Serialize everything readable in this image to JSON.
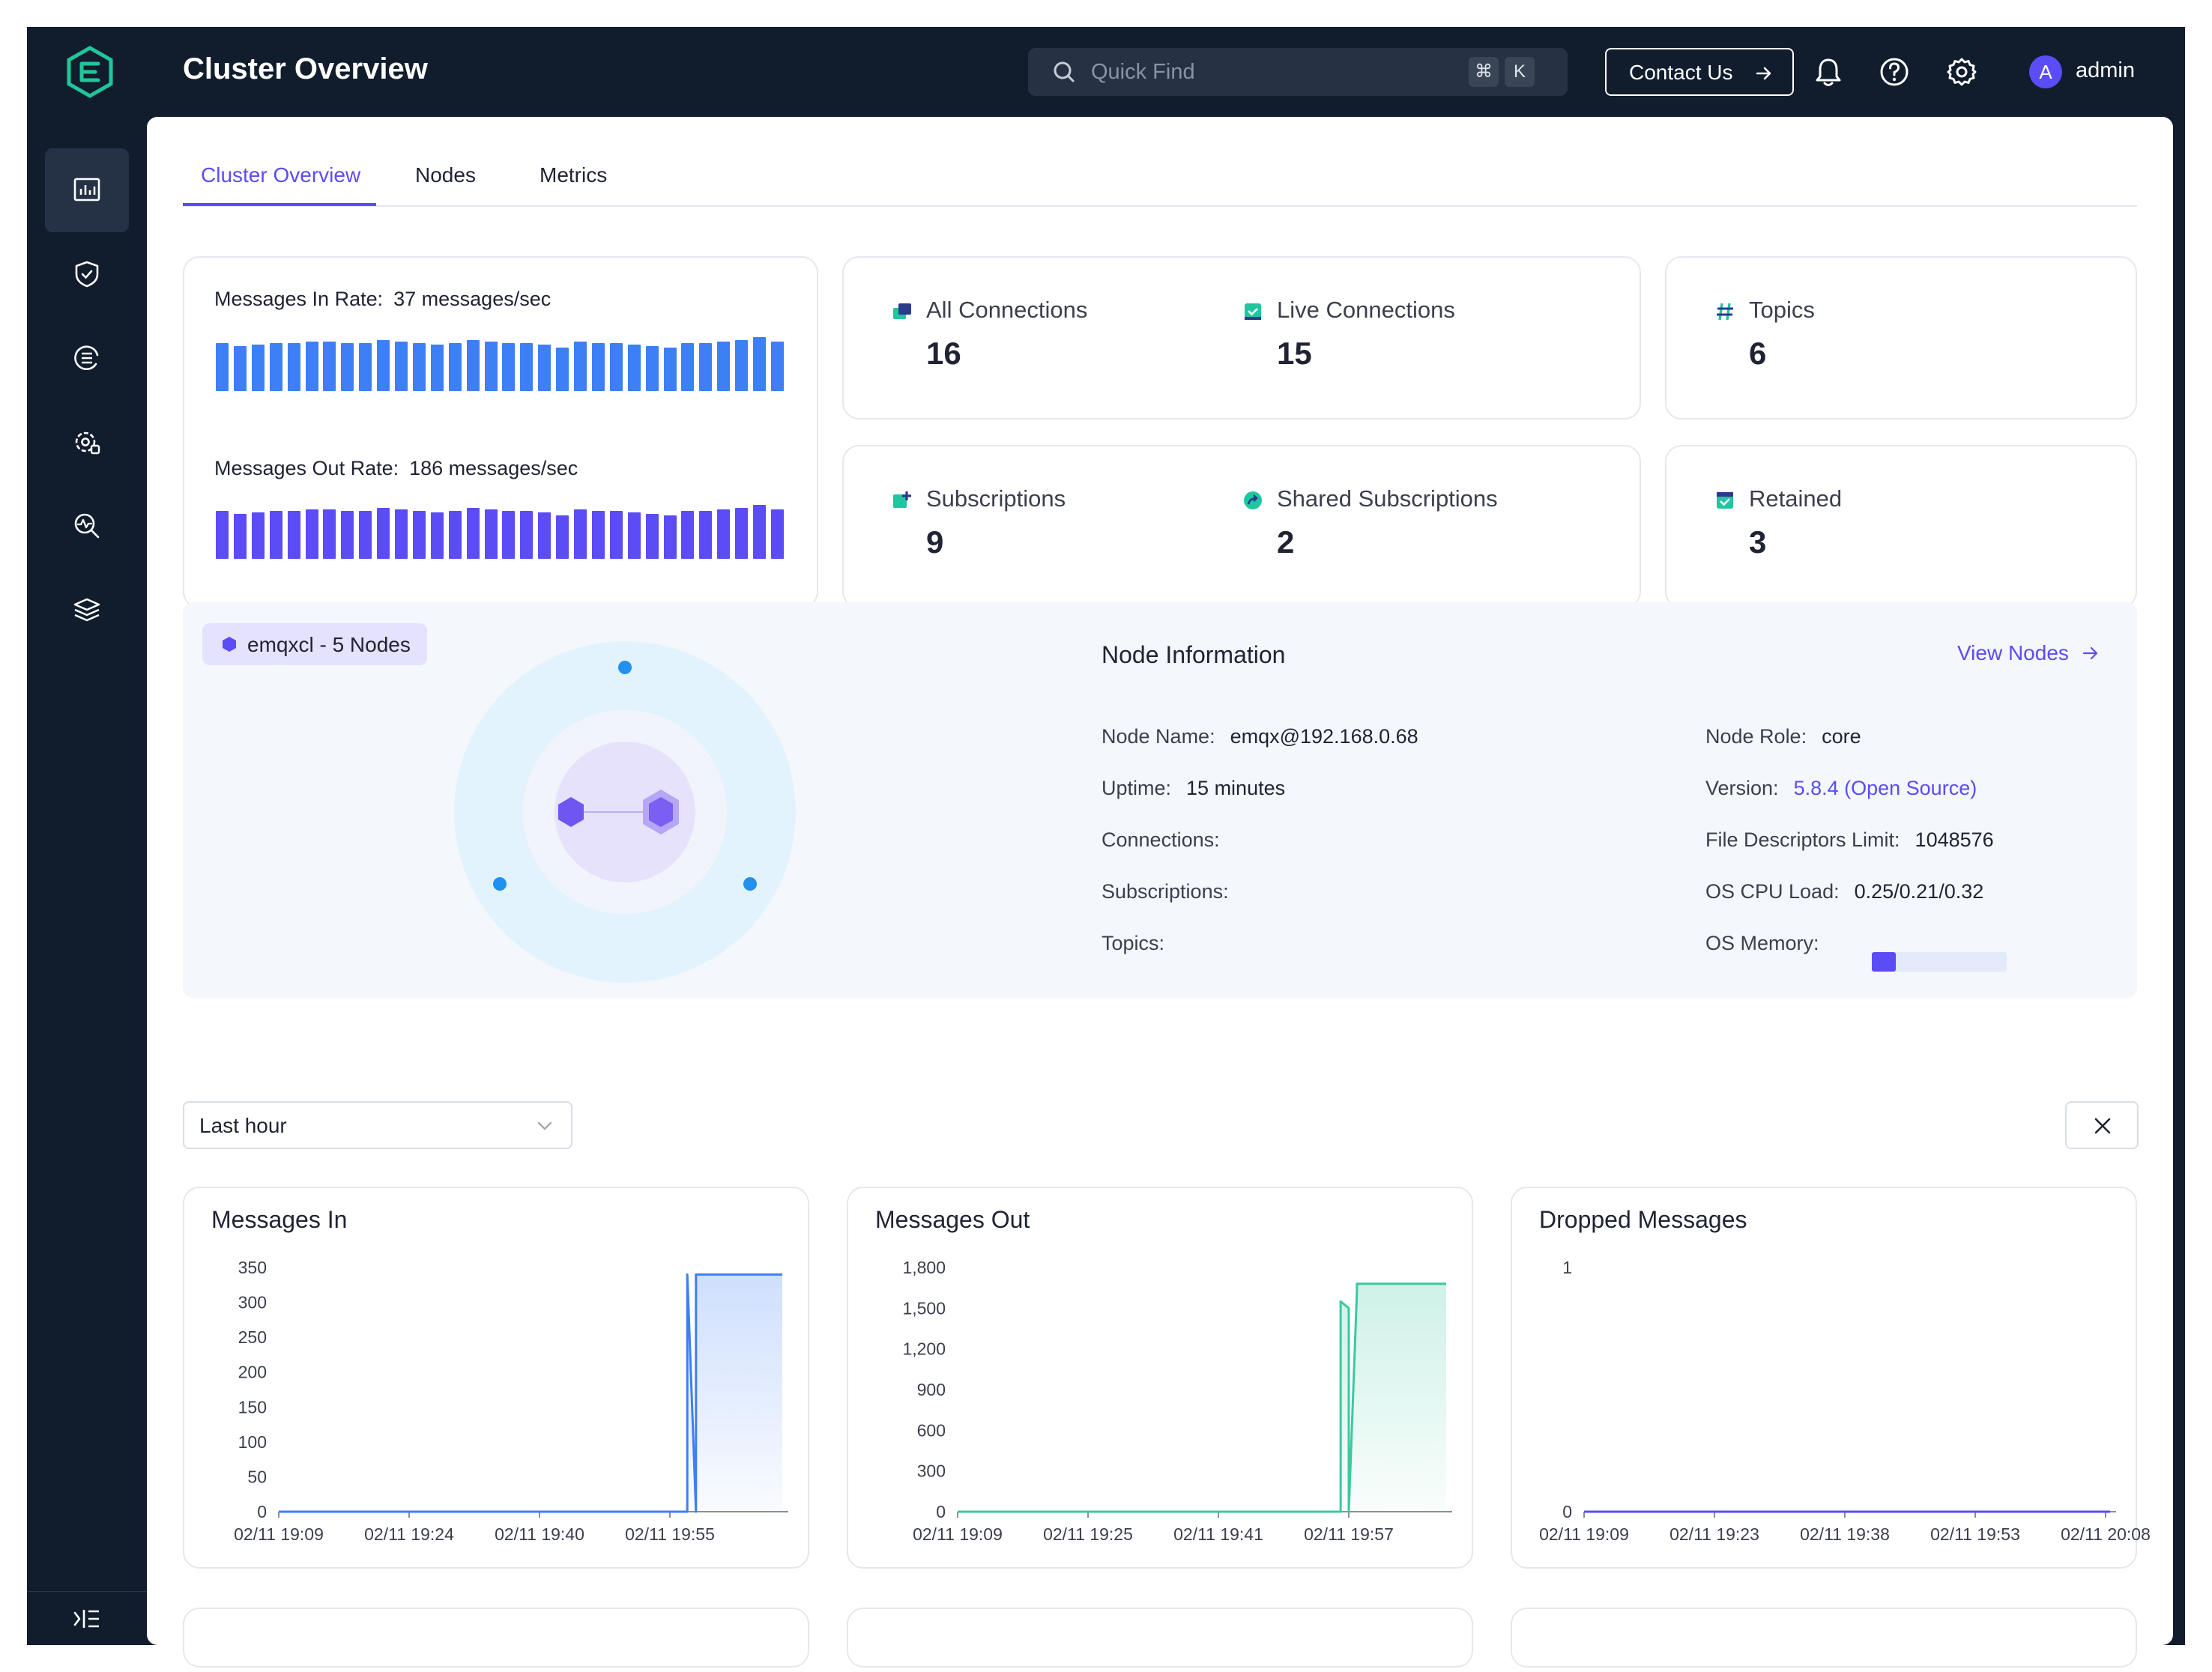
{
  "app": {
    "title": "Cluster Overview"
  },
  "search": {
    "placeholder": "Quick Find",
    "key1": "⌘",
    "key2": "K"
  },
  "header": {
    "contact_label": "Contact Us",
    "avatar_initial": "A",
    "username": "admin"
  },
  "sidebar": {
    "items": [
      {
        "icon": "dashboard-icon",
        "active": true
      },
      {
        "icon": "shield-icon",
        "active": false
      },
      {
        "icon": "integration-icon",
        "active": false
      },
      {
        "icon": "management-icon",
        "active": false
      },
      {
        "icon": "diagnose-icon",
        "active": false
      },
      {
        "icon": "layers-icon",
        "active": false
      }
    ]
  },
  "tabs": [
    {
      "label": "Cluster Overview",
      "active": true
    },
    {
      "label": "Nodes",
      "active": false
    },
    {
      "label": "Metrics",
      "active": false
    }
  ],
  "rates": {
    "in_label": "Messages In Rate:",
    "in_value": "37 messages/sec",
    "in_color": "#3d7ff5",
    "out_label": "Messages Out Rate:",
    "out_value": "186 messages/sec",
    "out_color": "#5b4cf6"
  },
  "stats": {
    "all_connections": {
      "label": "All Connections",
      "value": "16"
    },
    "live_connections": {
      "label": "Live Connections",
      "value": "15"
    },
    "topics": {
      "label": "Topics",
      "value": "6"
    },
    "subscriptions": {
      "label": "Subscriptions",
      "value": "9"
    },
    "shared_subscriptions": {
      "label": "Shared Subscriptions",
      "value": "2"
    },
    "retained": {
      "label": "Retained",
      "value": "3"
    }
  },
  "cluster": {
    "badge": "emqxcl - 5 Nodes"
  },
  "node_info": {
    "title": "Node Information",
    "view_nodes": "View Nodes",
    "node_name_label": "Node Name:",
    "node_name": "emqx@192.168.0.68",
    "uptime_label": "Uptime:",
    "uptime": "15 minutes",
    "connections_label": "Connections:",
    "subscriptions_label": "Subscriptions:",
    "topics_label": "Topics:",
    "node_role_label": "Node Role:",
    "node_role": "core",
    "version_label": "Version:",
    "version": "5.8.4 (Open Source)",
    "fd_label": "File Descriptors Limit:",
    "fd_limit": "1048576",
    "cpu_label": "OS CPU Load:",
    "cpu_load": "0.25/0.21/0.32",
    "memory_label": "OS Memory:",
    "memory_fraction": 0.18
  },
  "time_range": {
    "selected": "Last hour"
  },
  "chart_data": [
    {
      "type": "area",
      "title": "Messages In",
      "color": "#3d7ff5",
      "ylim": [
        0,
        350
      ],
      "yticks": [
        "0",
        "50",
        "100",
        "150",
        "200",
        "250",
        "300",
        "350"
      ],
      "xticks": [
        "02/11 19:09",
        "02/11 19:24",
        "02/11 19:40",
        "02/11 19:55"
      ],
      "series": [
        {
          "x": [
            "19:09",
            "19:56",
            "19:56",
            "19:56",
            "19:57",
            "19:57",
            "19:58",
            "20:09"
          ],
          "values": [
            0,
            0,
            340,
            340,
            0,
            340,
            340,
            340
          ]
        }
      ]
    },
    {
      "type": "area",
      "title": "Messages Out",
      "color": "#3dc8a0",
      "ylim": [
        0,
        1800
      ],
      "yticks": [
        "0",
        "300",
        "600",
        "900",
        "1,200",
        "1,500",
        "1,800"
      ],
      "xticks": [
        "02/11 19:09",
        "02/11 19:25",
        "02/11 19:41",
        "02/11 19:57"
      ],
      "series": [
        {
          "x": [
            "19:09",
            "19:56",
            "19:56",
            "19:57",
            "19:57",
            "19:58",
            "19:58",
            "20:09"
          ],
          "values": [
            0,
            0,
            1550,
            1500,
            0,
            1620,
            1680,
            1680
          ]
        }
      ]
    },
    {
      "type": "line",
      "title": "Dropped Messages",
      "color": "#5b4cf6",
      "ylim": [
        0,
        1
      ],
      "yticks": [
        "0",
        "1"
      ],
      "xticks": [
        "02/11 19:09",
        "02/11 19:23",
        "02/11 19:38",
        "02/11 19:53",
        "02/11 20:08"
      ],
      "series": [
        {
          "x": [
            "19:09",
            "19:56",
            "20:08"
          ],
          "values": [
            0,
            0,
            0
          ]
        }
      ]
    }
  ]
}
